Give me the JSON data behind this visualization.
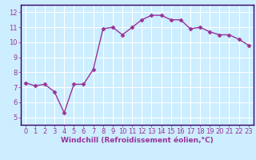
{
  "x": [
    0,
    1,
    2,
    3,
    4,
    5,
    6,
    7,
    8,
    9,
    10,
    11,
    12,
    13,
    14,
    15,
    16,
    17,
    18,
    19,
    20,
    21,
    22,
    23
  ],
  "y": [
    7.3,
    7.1,
    7.2,
    6.7,
    5.3,
    7.2,
    7.2,
    8.2,
    10.9,
    11.0,
    10.5,
    11.0,
    11.5,
    11.8,
    11.8,
    11.5,
    11.5,
    10.9,
    11.0,
    10.7,
    10.5,
    10.5,
    10.2,
    9.8
  ],
  "line_color": "#993399",
  "marker": "D",
  "markersize": 2.5,
  "linewidth": 1.0,
  "background_color": "#cceeff",
  "grid_color": "#ffffff",
  "xlabel": "Windchill (Refroidissement éolien,°C)",
  "ylabel": "",
  "xlim": [
    -0.5,
    23.5
  ],
  "ylim": [
    4.5,
    12.5
  ],
  "yticks": [
    5,
    6,
    7,
    8,
    9,
    10,
    11,
    12
  ],
  "xticks": [
    0,
    1,
    2,
    3,
    4,
    5,
    6,
    7,
    8,
    9,
    10,
    11,
    12,
    13,
    14,
    15,
    16,
    17,
    18,
    19,
    20,
    21,
    22,
    23
  ],
  "xlabel_fontsize": 6.5,
  "tick_fontsize": 6,
  "spine_color": "#330066",
  "bottom_bar_color": "#330066"
}
